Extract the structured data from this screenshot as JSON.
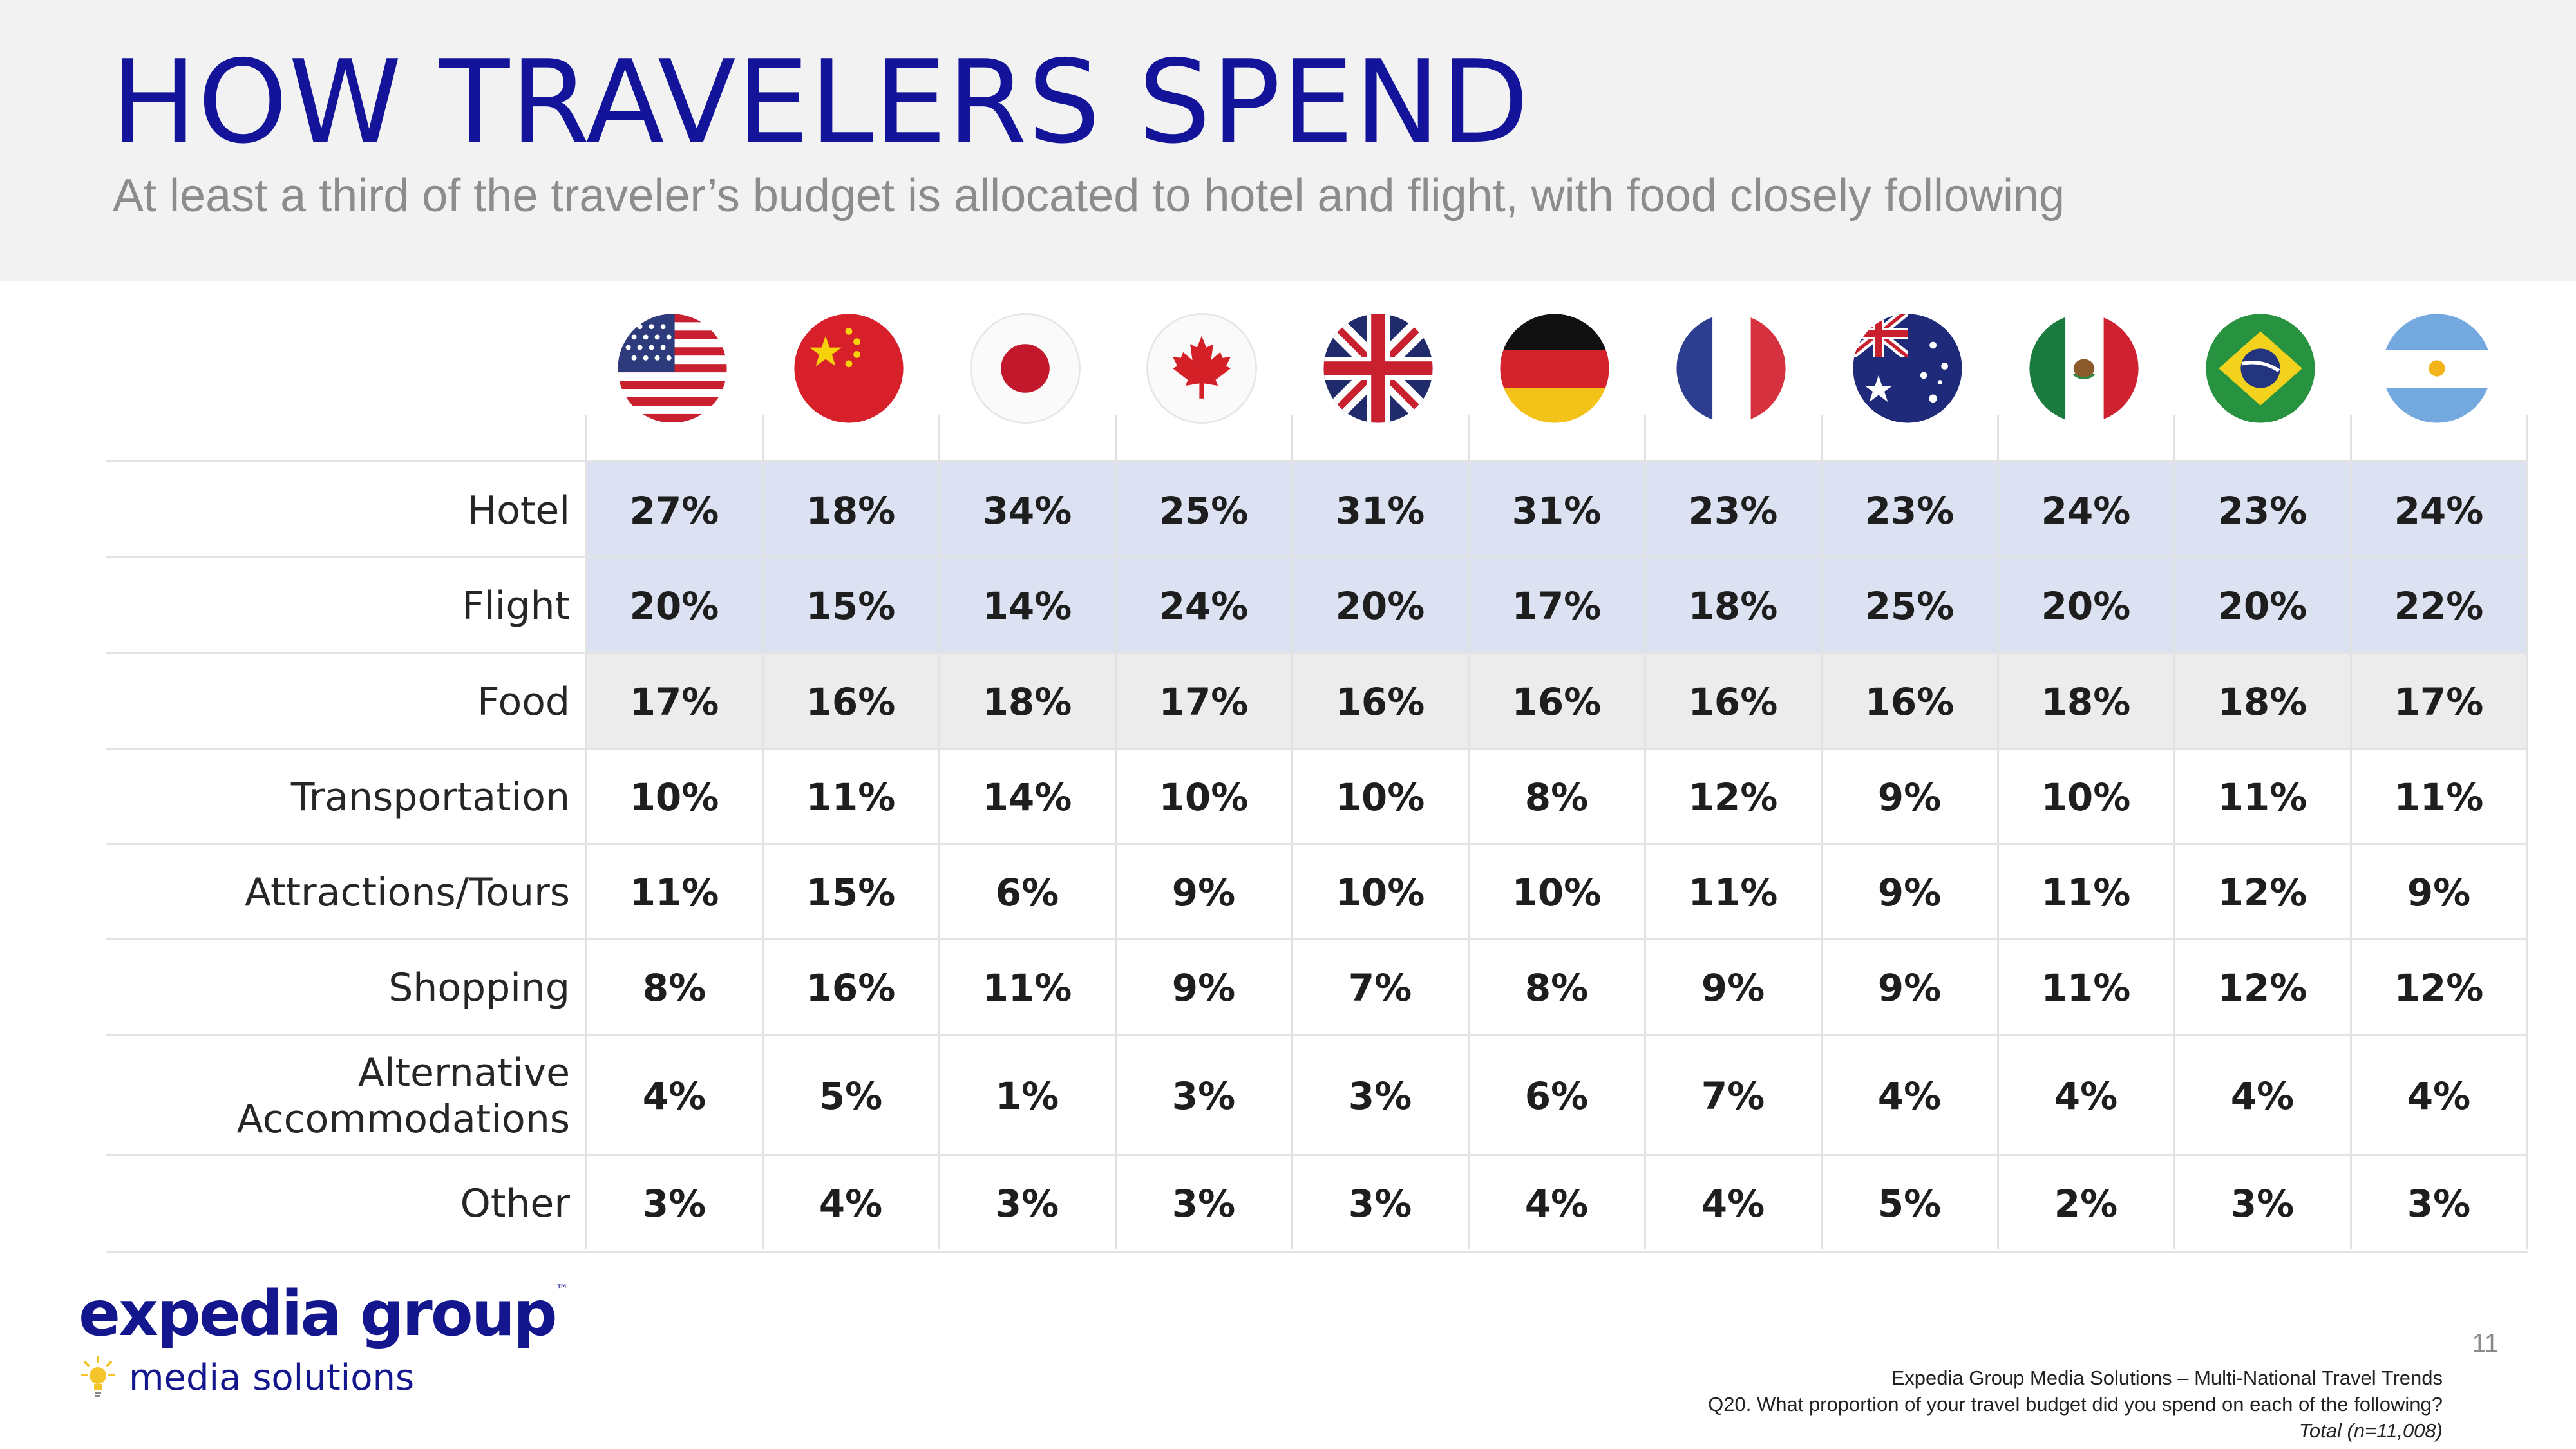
{
  "header": {
    "title": "HOW TRAVELERS SPEND",
    "subtitle": "At least a third of the traveler’s budget is allocated to hotel and flight, with food closely following"
  },
  "countries": [
    {
      "name": "USA",
      "flag_icon": "usa-flag-icon"
    },
    {
      "name": "China",
      "flag_icon": "china-flag-icon"
    },
    {
      "name": "Japan",
      "flag_icon": "japan-flag-icon"
    },
    {
      "name": "Canada",
      "flag_icon": "canada-flag-icon"
    },
    {
      "name": "UK",
      "flag_icon": "uk-flag-icon"
    },
    {
      "name": "Germany",
      "flag_icon": "germany-flag-icon"
    },
    {
      "name": "France",
      "flag_icon": "france-flag-icon"
    },
    {
      "name": "Australia",
      "flag_icon": "australia-flag-icon"
    },
    {
      "name": "Mexico",
      "flag_icon": "mexico-flag-icon"
    },
    {
      "name": "Brazil",
      "flag_icon": "brazil-flag-icon"
    },
    {
      "name": "Argentina",
      "flag_icon": "argentina-flag-icon"
    }
  ],
  "table": {
    "rows": [
      {
        "label": "Hotel",
        "highlight": "blue",
        "values": [
          "27%",
          "18%",
          "34%",
          "25%",
          "31%",
          "31%",
          "23%",
          "23%",
          "24%",
          "23%",
          "24%"
        ]
      },
      {
        "label": "Flight",
        "highlight": "blue",
        "values": [
          "20%",
          "15%",
          "14%",
          "24%",
          "20%",
          "17%",
          "18%",
          "25%",
          "20%",
          "20%",
          "22%"
        ]
      },
      {
        "label": "Food",
        "highlight": "gray",
        "values": [
          "17%",
          "16%",
          "18%",
          "17%",
          "16%",
          "16%",
          "16%",
          "16%",
          "18%",
          "18%",
          "17%"
        ]
      },
      {
        "label": "Transportation",
        "highlight": "none",
        "values": [
          "10%",
          "11%",
          "14%",
          "10%",
          "10%",
          "8%",
          "12%",
          "9%",
          "10%",
          "11%",
          "11%"
        ]
      },
      {
        "label": "Attractions/Tours",
        "highlight": "none",
        "values": [
          "11%",
          "15%",
          "6%",
          "9%",
          "10%",
          "10%",
          "11%",
          "9%",
          "11%",
          "12%",
          "9%"
        ]
      },
      {
        "label": "Shopping",
        "highlight": "none",
        "values": [
          "8%",
          "16%",
          "11%",
          "9%",
          "7%",
          "8%",
          "9%",
          "9%",
          "11%",
          "12%",
          "12%"
        ]
      },
      {
        "label": "Alternative\nAccommodations",
        "highlight": "none",
        "values": [
          "4%",
          "5%",
          "1%",
          "3%",
          "3%",
          "6%",
          "7%",
          "4%",
          "4%",
          "4%",
          "4%"
        ]
      },
      {
        "label": "Other",
        "highlight": "none",
        "values": [
          "3%",
          "4%",
          "3%",
          "3%",
          "3%",
          "4%",
          "4%",
          "5%",
          "2%",
          "3%",
          "3%"
        ]
      }
    ]
  },
  "colors": {
    "title": "#13149a",
    "highlight_blue": "#dde2f3",
    "highlight_gray": "#ececec"
  },
  "logo": {
    "name": "expedia group",
    "trademark": "™",
    "sub": "media solutions"
  },
  "footer": {
    "page_number": "11",
    "source": "Expedia Group Media Solutions – Multi-National Travel Trends",
    "question": "Q20. What proportion of your travel budget did you spend on each of the following?",
    "base": "Total (n=11,008)"
  }
}
